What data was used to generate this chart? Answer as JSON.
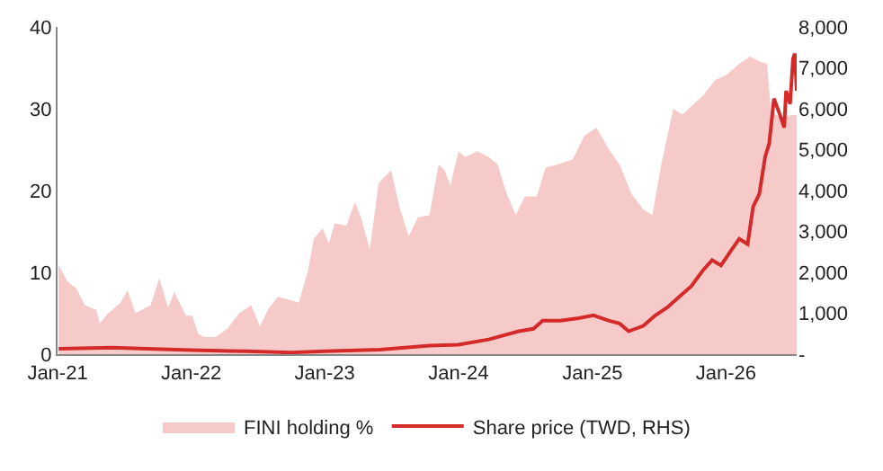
{
  "chart_data": {
    "type": "area",
    "legend": "bottom",
    "grid": false,
    "xlim": [
      "2021-01-01",
      "2026-07-13"
    ],
    "xticks": [
      {
        "value": "2021-01-01",
        "label": "Jan-21"
      },
      {
        "value": "2022-01-01",
        "label": "Jan-22"
      },
      {
        "value": "2023-01-01",
        "label": "Jan-23"
      },
      {
        "value": "2024-01-01",
        "label": "Jan-24"
      },
      {
        "value": "2025-01-01",
        "label": "Jan-25"
      },
      {
        "value": "2026-01-01",
        "label": "Jan-26"
      }
    ],
    "ylim": [
      0,
      40
    ],
    "yticks": [
      0,
      10,
      20,
      30,
      40
    ],
    "y2lim": [
      0,
      8000
    ],
    "y2ticks": [
      {
        "value": 0,
        "label": "-"
      },
      {
        "value": 1000,
        "label": "1,000"
      },
      {
        "value": 2000,
        "label": "2,000"
      },
      {
        "value": 3000,
        "label": "3,000"
      },
      {
        "value": 4000,
        "label": "4,000"
      },
      {
        "value": 5000,
        "label": "5,000"
      },
      {
        "value": 6000,
        "label": "6,000"
      },
      {
        "value": 7000,
        "label": "7,000"
      },
      {
        "value": 8000,
        "label": "8,000"
      }
    ],
    "series": [
      {
        "name": "FINI holding %",
        "type": "area",
        "color": "#f7caca",
        "x": [
          "2021-01-04",
          "2021-01-28",
          "2021-02-22",
          "2021-03-16",
          "2021-04-17",
          "2021-04-26",
          "2021-05-20",
          "2021-06-22",
          "2021-07-11",
          "2021-08-02",
          "2021-09-12",
          "2021-10-06",
          "2021-10-30",
          "2021-11-16",
          "2021-12-18",
          "2022-01-04",
          "2022-01-20",
          "2022-02-06",
          "2022-03-08",
          "2022-04-10",
          "2022-05-12",
          "2022-06-14",
          "2022-07-08",
          "2022-08-02",
          "2022-08-26",
          "2022-09-20",
          "2022-10-22",
          "2022-11-16",
          "2022-12-02",
          "2022-12-26",
          "2023-01-12",
          "2023-01-28",
          "2023-03-01",
          "2023-03-24",
          "2023-04-10",
          "2023-05-04",
          "2023-05-28",
          "2023-07-01",
          "2023-07-24",
          "2023-08-18",
          "2023-09-12",
          "2023-10-14",
          "2023-11-08",
          "2023-11-24",
          "2023-12-10",
          "2024-01-01",
          "2024-01-20",
          "2024-02-22",
          "2024-03-24",
          "2024-04-17",
          "2024-05-12",
          "2024-06-06",
          "2024-06-30",
          "2024-08-02",
          "2024-08-26",
          "2024-09-28",
          "2024-11-08",
          "2024-12-10",
          "2025-01-12",
          "2025-02-14",
          "2025-03-16",
          "2025-04-18",
          "2025-05-20",
          "2025-06-14",
          "2025-07-08",
          "2025-08-10",
          "2025-09-04",
          "2025-09-28",
          "2025-10-30",
          "2025-12-02",
          "2026-01-04",
          "2026-02-06",
          "2026-03-08",
          "2026-04-02",
          "2026-04-23",
          "2026-05-04",
          "2026-05-28",
          "2026-07-13"
        ],
        "values": [
          10.9,
          8.9,
          8.0,
          6.0,
          5.4,
          3.8,
          5.0,
          6.3,
          7.8,
          5.0,
          6.0,
          9.3,
          5.7,
          7.6,
          4.7,
          4.7,
          2.5,
          2.1,
          2.1,
          3.1,
          5.0,
          6.0,
          3.4,
          5.7,
          7.0,
          6.7,
          6.3,
          10.2,
          14.1,
          15.4,
          13.5,
          16.0,
          15.7,
          18.6,
          16.7,
          12.8,
          20.9,
          22.5,
          18.0,
          14.4,
          16.7,
          17.0,
          23.2,
          22.5,
          20.6,
          24.8,
          24.1,
          24.8,
          24.1,
          23.2,
          19.6,
          17.0,
          19.3,
          19.3,
          22.8,
          23.2,
          23.8,
          26.7,
          27.7,
          25.1,
          23.2,
          19.6,
          17.7,
          17.0,
          23.2,
          30.0,
          29.3,
          30.3,
          31.6,
          33.5,
          34.2,
          35.5,
          36.4,
          35.8,
          35.5,
          29.6,
          29.0,
          29.3
        ]
      },
      {
        "name": "Share price (TWD, RHS)",
        "type": "line",
        "axis": "y2",
        "color": "#d42a2a",
        "x": [
          "2021-01-04",
          "2021-06-01",
          "2021-09-01",
          "2022-01-01",
          "2022-06-01",
          "2022-10-01",
          "2023-01-01",
          "2023-06-01",
          "2023-10-15",
          "2024-01-01",
          "2024-03-24",
          "2024-06-14",
          "2024-07-24",
          "2024-08-18",
          "2024-10-06",
          "2024-11-24",
          "2025-01-04",
          "2025-02-14",
          "2025-03-16",
          "2025-04-10",
          "2025-05-20",
          "2025-06-22",
          "2025-07-24",
          "2025-08-26",
          "2025-09-28",
          "2025-10-30",
          "2025-11-24",
          "2025-12-18",
          "2026-01-12",
          "2026-02-06",
          "2026-03-01",
          "2026-03-16",
          "2026-04-02",
          "2026-04-18",
          "2026-04-29",
          "2026-05-12",
          "2026-05-28",
          "2026-06-09",
          "2026-06-14",
          "2026-06-25",
          "2026-07-03",
          "2026-07-08",
          "2026-07-13"
        ],
        "values": [
          130,
          160,
          130,
          100,
          70,
          40,
          70,
          110,
          210,
          230,
          360,
          560,
          620,
          820,
          820,
          880,
          950,
          820,
          750,
          560,
          690,
          950,
          1140,
          1400,
          1660,
          2050,
          2300,
          2170,
          2500,
          2820,
          2690,
          3600,
          3920,
          4830,
          5150,
          6250,
          5860,
          5540,
          6440,
          6120,
          7220,
          7350,
          6440
        ]
      }
    ]
  }
}
